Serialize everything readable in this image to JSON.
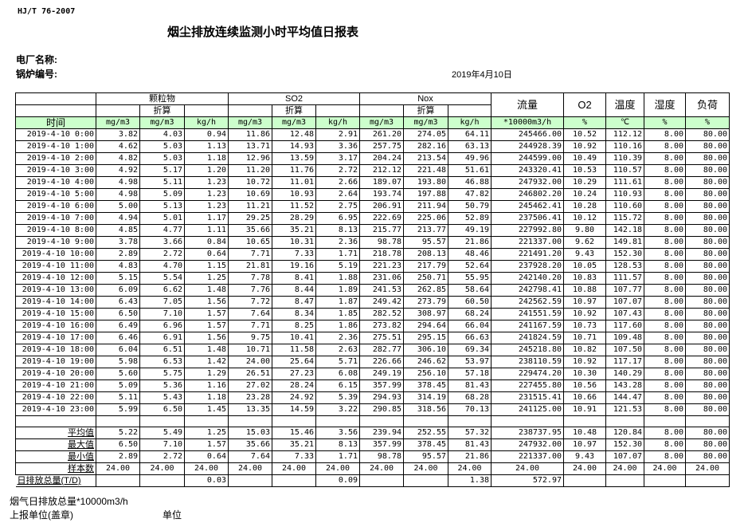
{
  "standard": "HJ/T  76-2007",
  "title": "烟尘排放连续监测小时平均值日报表",
  "plant_label": "电厂名称:",
  "boiler_label": "锅炉编号:",
  "report_date": "2019年4月10日",
  "colors": {
    "header_bg": "#ccffcc"
  },
  "table": {
    "groups": {
      "pm": "颗粒物",
      "so2": "SO2",
      "nox": "Nox",
      "flow": "流量",
      "o2": "O2",
      "temp": "温度",
      "humidity": "湿度",
      "load": "负荷"
    },
    "converted": "折算",
    "time_header": "时间",
    "units": [
      "mg/m3",
      "mg/m3",
      "kg/h",
      "mg/m3",
      "mg/m3",
      "kg/h",
      "mg/m3",
      "mg/m3",
      "kg/h",
      "*10000m3/h",
      "%",
      "℃",
      "%",
      "%"
    ],
    "rows": [
      [
        "2019-4-10 0:00",
        "3.82",
        "4.03",
        "0.94",
        "11.86",
        "12.48",
        "2.91",
        "261.20",
        "274.05",
        "64.11",
        "245466.00",
        "10.52",
        "112.12",
        "8.00",
        "80.00"
      ],
      [
        "2019-4-10 1:00",
        "4.62",
        "5.03",
        "1.13",
        "13.71",
        "14.93",
        "3.36",
        "257.75",
        "282.16",
        "63.13",
        "244928.39",
        "10.92",
        "110.16",
        "8.00",
        "80.00"
      ],
      [
        "2019-4-10 2:00",
        "4.82",
        "5.03",
        "1.18",
        "12.96",
        "13.59",
        "3.17",
        "204.24",
        "213.54",
        "49.96",
        "244599.00",
        "10.49",
        "110.39",
        "8.00",
        "80.00"
      ],
      [
        "2019-4-10 3:00",
        "4.92",
        "5.17",
        "1.20",
        "11.20",
        "11.76",
        "2.72",
        "212.12",
        "221.48",
        "51.61",
        "243320.41",
        "10.53",
        "110.57",
        "8.00",
        "80.00"
      ],
      [
        "2019-4-10 4:00",
        "4.98",
        "5.11",
        "1.23",
        "10.72",
        "11.01",
        "2.66",
        "189.07",
        "193.80",
        "46.88",
        "247932.00",
        "10.29",
        "111.61",
        "8.00",
        "80.00"
      ],
      [
        "2019-4-10 5:00",
        "4.98",
        "5.09",
        "1.23",
        "10.69",
        "10.93",
        "2.64",
        "193.74",
        "197.88",
        "47.82",
        "246802.20",
        "10.24",
        "110.93",
        "8.00",
        "80.00"
      ],
      [
        "2019-4-10 6:00",
        "5.00",
        "5.13",
        "1.23",
        "11.21",
        "11.52",
        "2.75",
        "206.91",
        "211.94",
        "50.79",
        "245462.41",
        "10.28",
        "110.60",
        "8.00",
        "80.00"
      ],
      [
        "2019-4-10 7:00",
        "4.94",
        "5.01",
        "1.17",
        "29.25",
        "28.29",
        "6.95",
        "222.69",
        "225.06",
        "52.89",
        "237506.41",
        "10.12",
        "115.72",
        "8.00",
        "80.00"
      ],
      [
        "2019-4-10 8:00",
        "4.85",
        "4.77",
        "1.11",
        "35.66",
        "35.21",
        "8.13",
        "215.77",
        "213.77",
        "49.19",
        "227992.80",
        "9.80",
        "142.18",
        "8.00",
        "80.00"
      ],
      [
        "2019-4-10 9:00",
        "3.78",
        "3.66",
        "0.84",
        "10.65",
        "10.31",
        "2.36",
        "98.78",
        "95.57",
        "21.86",
        "221337.00",
        "9.62",
        "149.81",
        "8.00",
        "80.00"
      ],
      [
        "2019-4-10 10:00",
        "2.89",
        "2.72",
        "0.64",
        "7.71",
        "7.33",
        "1.71",
        "218.78",
        "208.13",
        "48.46",
        "221491.20",
        "9.43",
        "152.30",
        "8.00",
        "80.00"
      ],
      [
        "2019-4-10 11:00",
        "4.83",
        "4.70",
        "1.15",
        "21.81",
        "19.16",
        "5.19",
        "221.23",
        "217.79",
        "52.64",
        "237928.20",
        "10.05",
        "128.53",
        "8.00",
        "80.00"
      ],
      [
        "2019-4-10 12:00",
        "5.15",
        "5.54",
        "1.25",
        "7.78",
        "8.41",
        "1.88",
        "231.06",
        "250.71",
        "55.95",
        "242140.20",
        "10.83",
        "111.57",
        "8.00",
        "80.00"
      ],
      [
        "2019-4-10 13:00",
        "6.09",
        "6.62",
        "1.48",
        "7.76",
        "8.44",
        "1.89",
        "241.53",
        "262.85",
        "58.64",
        "242798.41",
        "10.88",
        "107.77",
        "8.00",
        "80.00"
      ],
      [
        "2019-4-10 14:00",
        "6.43",
        "7.05",
        "1.56",
        "7.72",
        "8.47",
        "1.87",
        "249.42",
        "273.79",
        "60.50",
        "242562.59",
        "10.97",
        "107.07",
        "8.00",
        "80.00"
      ],
      [
        "2019-4-10 15:00",
        "6.50",
        "7.10",
        "1.57",
        "7.64",
        "8.34",
        "1.85",
        "282.52",
        "308.97",
        "68.24",
        "241551.59",
        "10.92",
        "107.43",
        "8.00",
        "80.00"
      ],
      [
        "2019-4-10 16:00",
        "6.49",
        "6.96",
        "1.57",
        "7.71",
        "8.25",
        "1.86",
        "273.82",
        "294.64",
        "66.04",
        "241167.59",
        "10.73",
        "117.60",
        "8.00",
        "80.00"
      ],
      [
        "2019-4-10 17:00",
        "6.46",
        "6.91",
        "1.56",
        "9.75",
        "10.41",
        "2.36",
        "275.51",
        "295.15",
        "66.63",
        "241824.59",
        "10.71",
        "109.48",
        "8.00",
        "80.00"
      ],
      [
        "2019-4-10 18:00",
        "6.04",
        "6.51",
        "1.48",
        "10.71",
        "11.58",
        "2.63",
        "282.77",
        "306.10",
        "69.34",
        "245218.80",
        "10.82",
        "107.50",
        "8.00",
        "80.00"
      ],
      [
        "2019-4-10 19:00",
        "5.98",
        "6.53",
        "1.42",
        "24.00",
        "25.64",
        "5.71",
        "226.66",
        "246.62",
        "53.97",
        "238110.59",
        "10.92",
        "117.17",
        "8.00",
        "80.00"
      ],
      [
        "2019-4-10 20:00",
        "5.60",
        "5.75",
        "1.29",
        "26.51",
        "27.23",
        "6.08",
        "249.19",
        "256.10",
        "57.18",
        "229474.20",
        "10.30",
        "140.29",
        "8.00",
        "80.00"
      ],
      [
        "2019-4-10 21:00",
        "5.09",
        "5.36",
        "1.16",
        "27.02",
        "28.24",
        "6.15",
        "357.99",
        "378.45",
        "81.43",
        "227455.80",
        "10.56",
        "143.28",
        "8.00",
        "80.00"
      ],
      [
        "2019-4-10 22:00",
        "5.11",
        "5.43",
        "1.18",
        "23.28",
        "24.92",
        "5.39",
        "294.93",
        "314.19",
        "68.28",
        "231515.41",
        "10.66",
        "144.47",
        "8.00",
        "80.00"
      ],
      [
        "2019-4-10 23:00",
        "5.99",
        "6.50",
        "1.45",
        "13.35",
        "14.59",
        "3.22",
        "290.85",
        "318.56",
        "70.13",
        "241125.00",
        "10.91",
        "121.53",
        "8.00",
        "80.00"
      ]
    ],
    "summary": [
      [
        "平均值",
        "5.22",
        "5.49",
        "1.25",
        "15.03",
        "15.46",
        "3.56",
        "239.94",
        "252.55",
        "57.32",
        "238737.95",
        "10.48",
        "120.84",
        "8.00",
        "80.00"
      ],
      [
        "最大值",
        "6.50",
        "7.10",
        "1.57",
        "35.66",
        "35.21",
        "8.13",
        "357.99",
        "378.45",
        "81.43",
        "247932.00",
        "10.97",
        "152.30",
        "8.00",
        "80.00"
      ],
      [
        "最小值",
        "2.89",
        "2.72",
        "0.64",
        "7.64",
        "7.33",
        "1.71",
        "98.78",
        "95.57",
        "21.86",
        "221337.00",
        "9.43",
        "107.07",
        "8.00",
        "80.00"
      ],
      [
        "样本数",
        "24.00",
        "24.00",
        "24.00",
        "24.00",
        "24.00",
        "24.00",
        "24.00",
        "24.00",
        "24.00",
        "24.00",
        "24.00",
        "24.00",
        "24.00",
        "24.00"
      ]
    ],
    "daily_total": [
      "日排放总量(T/D)",
      "",
      "",
      "0.03",
      "",
      "",
      "0.09",
      "",
      "",
      "1.38",
      "572.97",
      "",
      "",
      "",
      ""
    ]
  },
  "footer": {
    "flue_total": "烟气日排放总量*10000m3/h",
    "reporting_unit": "上报单位(盖章)",
    "unit": "单位"
  }
}
